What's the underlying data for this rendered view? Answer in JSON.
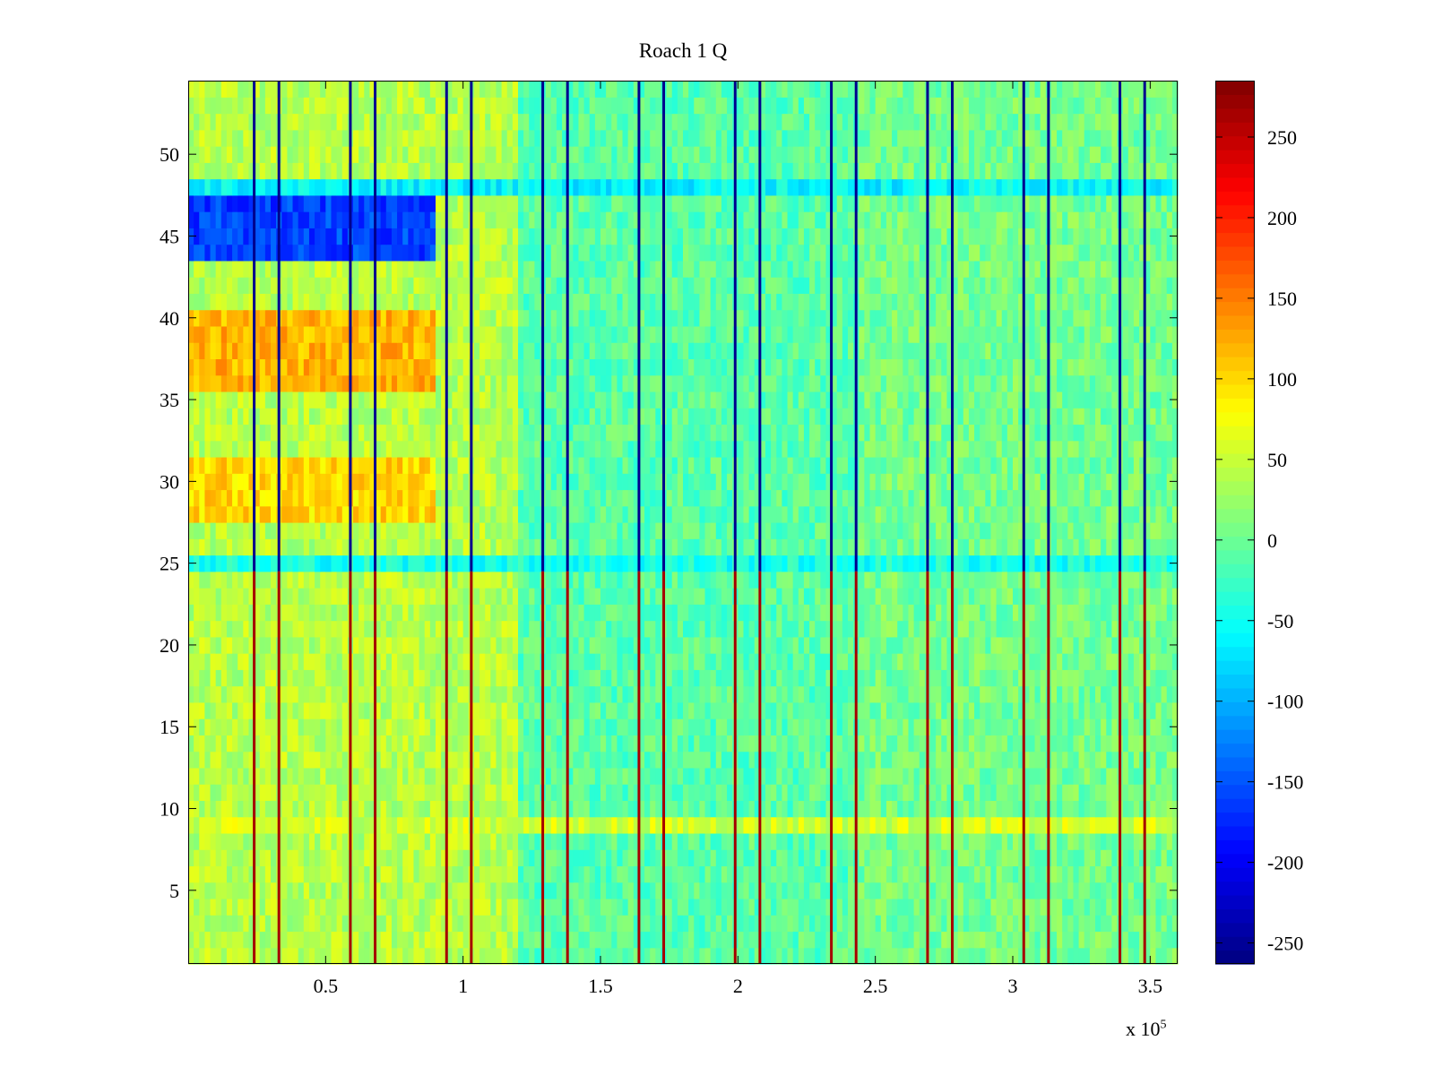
{
  "chart_data": {
    "type": "heatmap",
    "title": "Roach 1 Q",
    "xlabel": "",
    "ylabel": "",
    "x_exponent_label": {
      "base": "x 10",
      "exponent": "5"
    },
    "x_range": [
      0,
      360000
    ],
    "y_range": [
      0.5,
      54.5
    ],
    "x_ticks": [
      {
        "value": 50000,
        "label": "0.5"
      },
      {
        "value": 100000,
        "label": "1"
      },
      {
        "value": 150000,
        "label": "1.5"
      },
      {
        "value": 200000,
        "label": "2"
      },
      {
        "value": 250000,
        "label": "2.5"
      },
      {
        "value": 300000,
        "label": "3"
      },
      {
        "value": 350000,
        "label": "3.5"
      }
    ],
    "y_ticks": [
      {
        "value": 5,
        "label": "5"
      },
      {
        "value": 10,
        "label": "10"
      },
      {
        "value": 15,
        "label": "15"
      },
      {
        "value": 20,
        "label": "20"
      },
      {
        "value": 25,
        "label": "25"
      },
      {
        "value": 30,
        "label": "30"
      },
      {
        "value": 35,
        "label": "35"
      },
      {
        "value": 40,
        "label": "40"
      },
      {
        "value": 45,
        "label": "45"
      },
      {
        "value": 50,
        "label": "50"
      }
    ],
    "colorbar": {
      "range": [
        -263,
        285
      ],
      "colormap": "jet",
      "ticks": [
        {
          "value": 250,
          "label": "250"
        },
        {
          "value": 200,
          "label": "200"
        },
        {
          "value": 150,
          "label": "150"
        },
        {
          "value": 100,
          "label": "100"
        },
        {
          "value": 50,
          "label": "50"
        },
        {
          "value": 0,
          "label": "0"
        },
        {
          "value": -50,
          "label": "-50"
        },
        {
          "value": -100,
          "label": "-100"
        },
        {
          "value": -150,
          "label": "-150"
        },
        {
          "value": -200,
          "label": "-200"
        },
        {
          "value": -250,
          "label": "-250"
        }
      ]
    },
    "rows": 54,
    "boundaries_x": [
      24000,
      33000,
      59000,
      68000,
      94000,
      103000,
      129000,
      138000,
      164000,
      173000,
      199000,
      208000,
      234000,
      243000,
      269000,
      278000,
      304000,
      313000,
      339000,
      348000
    ],
    "row_bands": [
      {
        "from": 36,
        "to": 40,
        "value": 120
      },
      {
        "from": 28,
        "to": 31,
        "value": 100
      },
      {
        "from": 44,
        "to": 47,
        "value": -160
      },
      {
        "from": 48,
        "to": 48,
        "value": -60
      },
      {
        "from": 9,
        "to": 9,
        "value": 55
      },
      {
        "from": 25,
        "to": 25,
        "value": -45
      }
    ],
    "segments": [
      {
        "x_range": [
          0,
          120000
        ],
        "baseline": 40
      },
      {
        "x_range": [
          120000,
          245000
        ],
        "baseline": -10
      },
      {
        "x_range": [
          245000,
          360000
        ],
        "baseline": 5
      }
    ]
  }
}
